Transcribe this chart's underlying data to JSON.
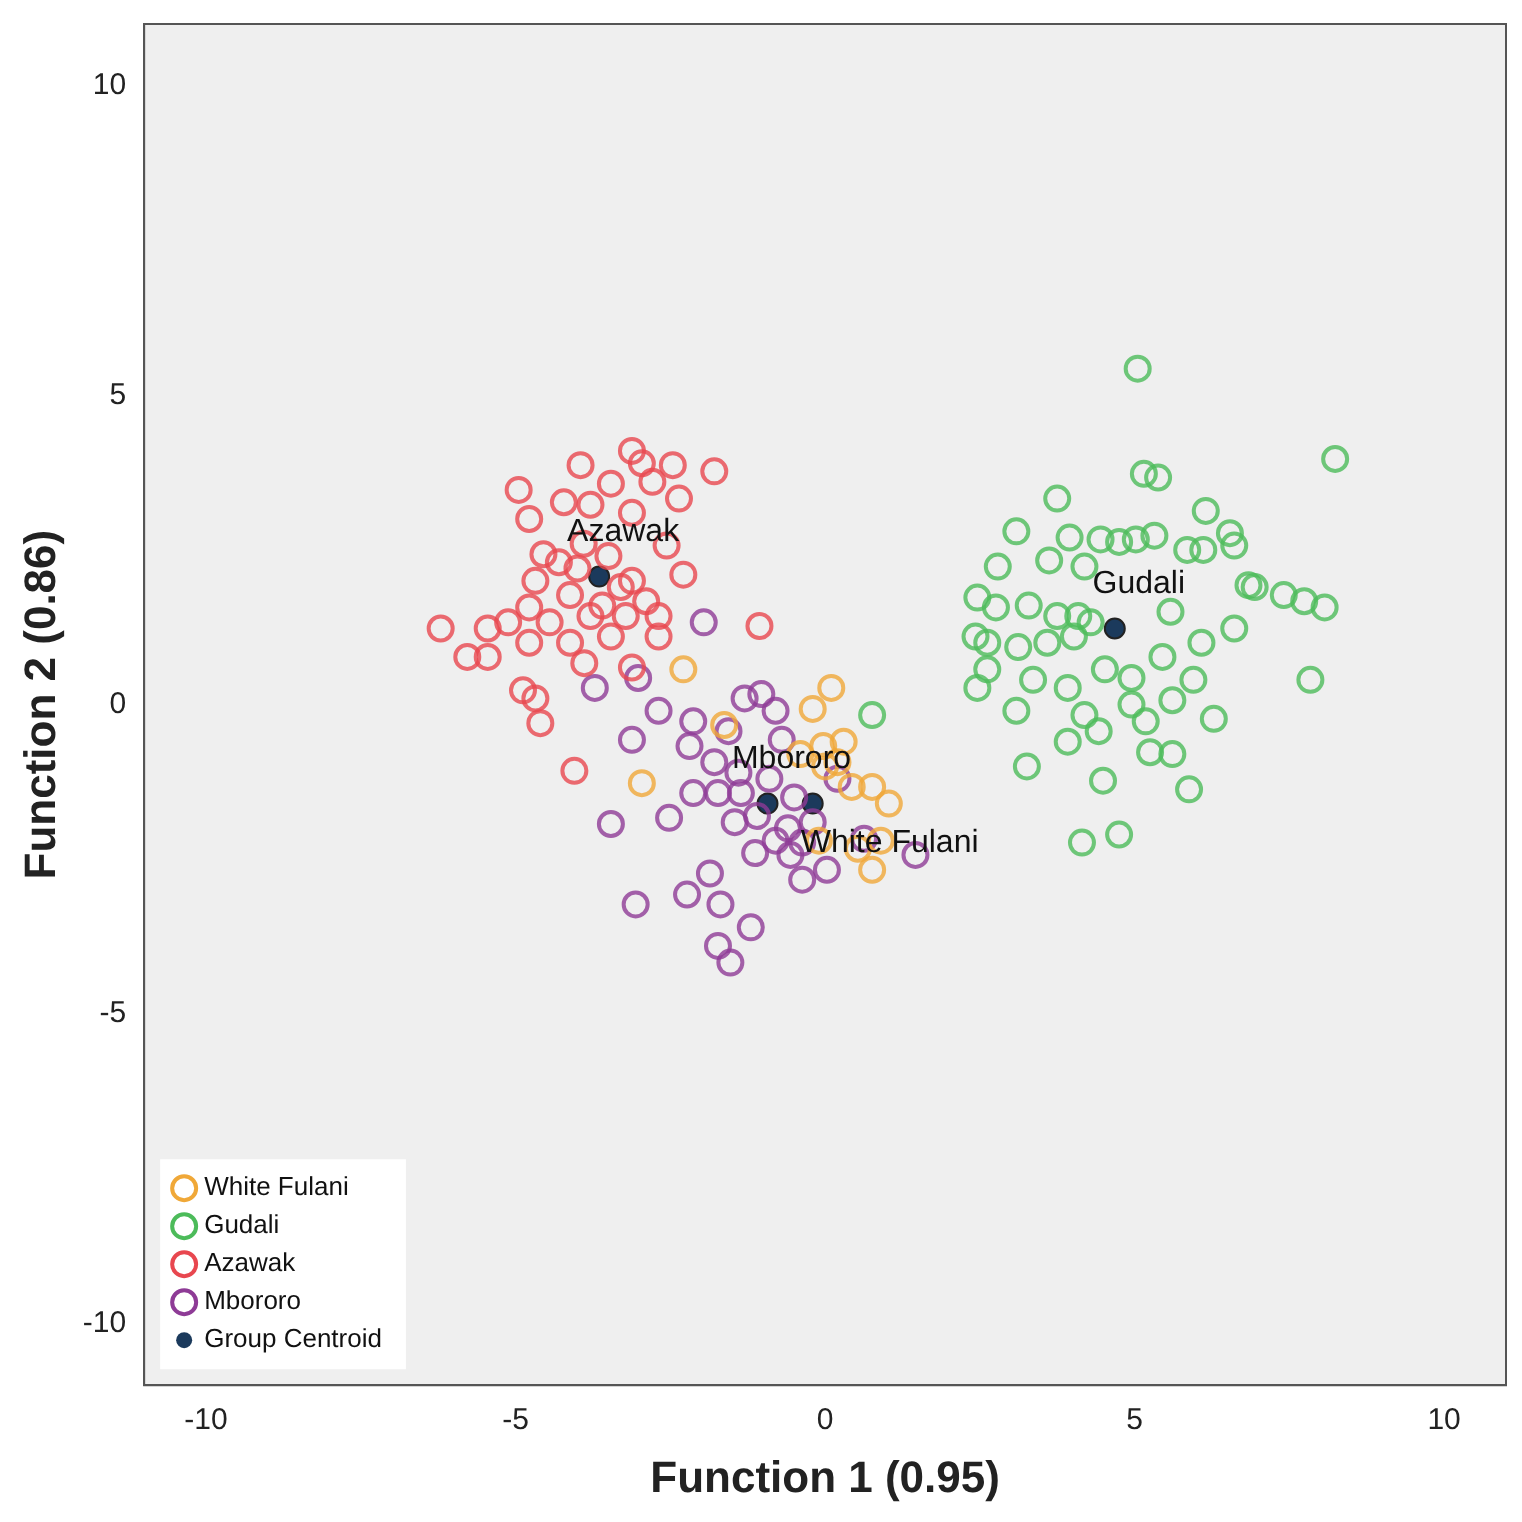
{
  "chart_data": {
    "type": "scatter",
    "xlabel": "Function 1 (0.95)",
    "ylabel": "Function 2 (0.86)",
    "xlim": [
      -11,
      11
    ],
    "ylim": [
      -11,
      11
    ],
    "xticks": [
      -10,
      -5,
      0,
      5,
      10
    ],
    "yticks": [
      -10,
      -5,
      0,
      5,
      10
    ],
    "grid": false,
    "legend": "bottom left",
    "marker": "circle",
    "series": [
      {
        "name": "White Fulani",
        "color": "#f0a838",
        "x": [
          -2.29,
          -2.96,
          0.1,
          -0.2,
          -0.03,
          0.3,
          0.76,
          1.03,
          0.76,
          0.53,
          0.2,
          -1.63,
          0.43,
          0.9,
          0.0,
          -0.4,
          -0.1
        ],
        "values": [
          0.57,
          -1.27,
          0.27,
          -0.07,
          -0.67,
          -0.6,
          -1.33,
          -1.6,
          -2.67,
          -2.33,
          -0.93,
          -0.33,
          -1.33,
          -2.2,
          -1.0,
          -0.8,
          -2.2
        ]
      },
      {
        "name": "Gudali",
        "color": "#4cbb5a",
        "x": [
          5.05,
          8.24,
          5.15,
          5.38,
          3.75,
          6.15,
          3.09,
          3.95,
          4.45,
          4.75,
          5.02,
          5.32,
          5.85,
          6.11,
          6.54,
          6.61,
          2.79,
          3.62,
          4.19,
          6.84,
          6.94,
          7.41,
          7.74,
          8.07,
          2.46,
          2.76,
          3.29,
          3.75,
          4.09,
          4.29,
          5.58,
          2.43,
          2.62,
          3.12,
          3.59,
          4.02,
          6.08,
          6.61,
          2.62,
          2.46,
          3.36,
          3.92,
          4.52,
          4.95,
          5.45,
          5.61,
          5.95,
          7.84,
          3.09,
          4.19,
          4.95,
          5.18,
          3.92,
          4.42,
          5.25,
          5.61,
          6.28,
          3.26,
          4.49,
          5.88,
          4.15,
          4.75,
          0.76
        ],
        "values": [
          5.43,
          3.97,
          3.73,
          3.67,
          3.33,
          3.13,
          2.8,
          2.7,
          2.67,
          2.63,
          2.67,
          2.73,
          2.5,
          2.5,
          2.77,
          2.57,
          2.23,
          2.33,
          2.23,
          1.93,
          1.9,
          1.77,
          1.67,
          1.57,
          1.73,
          1.57,
          1.6,
          1.43,
          1.43,
          1.33,
          1.5,
          1.1,
          1.0,
          0.93,
          1.0,
          1.1,
          1.0,
          1.23,
          0.57,
          0.27,
          0.4,
          0.27,
          0.57,
          0.43,
          0.77,
          0.07,
          0.4,
          0.4,
          -0.1,
          -0.17,
          0.0,
          -0.27,
          -0.6,
          -0.43,
          -0.77,
          -0.8,
          -0.23,
          -1.0,
          -1.23,
          -1.37,
          -2.23,
          -2.1,
          -0.17
        ]
      },
      {
        "name": "Azawak",
        "color": "#e8474f",
        "x": [
          -3.12,
          -3.95,
          -2.96,
          -2.46,
          -1.79,
          -4.95,
          -3.46,
          -2.79,
          -2.36,
          -4.78,
          -4.22,
          -3.79,
          -3.12,
          -4.55,
          -2.56,
          -4.68,
          -2.29,
          -4.12,
          -3.12,
          -2.89,
          -4.78,
          -6.21,
          -5.45,
          -5.12,
          -4.45,
          -3.79,
          -3.22,
          -2.69,
          -1.06,
          -5.78,
          -5.45,
          -4.78,
          -4.12,
          -3.46,
          -2.69,
          -3.89,
          -4.88,
          -4.68,
          -3.12,
          -4.6,
          -4.05,
          -4.0,
          -3.5,
          -3.3,
          -3.9,
          -4.3,
          -3.6
        ],
        "values": [
          4.1,
          3.87,
          3.9,
          3.87,
          3.77,
          3.47,
          3.57,
          3.6,
          3.33,
          3.0,
          3.27,
          3.23,
          3.1,
          2.43,
          2.57,
          2.0,
          2.1,
          1.77,
          2.0,
          1.67,
          1.57,
          1.23,
          1.23,
          1.33,
          1.33,
          1.43,
          1.43,
          1.43,
          1.27,
          0.77,
          0.77,
          1.0,
          1.0,
          1.1,
          1.1,
          0.67,
          0.23,
          0.1,
          0.6,
          -0.3,
          -1.07,
          2.2,
          2.4,
          1.9,
          2.6,
          2.3,
          1.6
        ]
      },
      {
        "name": "Mbororo",
        "color": "#8e3b96",
        "x": [
          -1.96,
          -3.72,
          -3.02,
          -2.69,
          -3.12,
          -2.13,
          -2.19,
          -1.3,
          -1.03,
          -0.8,
          -1.56,
          -0.7,
          -1.79,
          -2.13,
          -2.52,
          -3.46,
          -1.73,
          -1.36,
          -1.46,
          -1.13,
          -0.56,
          -0.37,
          0.03,
          -0.37,
          -1.86,
          -2.23,
          -3.06,
          -1.69,
          -1.2,
          -1.73,
          -1.53,
          1.46,
          0.63,
          -0.9,
          -0.5,
          -1.1,
          -0.6,
          -1.4,
          -0.2,
          -0.8,
          0.2
        ],
        "values": [
          1.33,
          0.27,
          0.43,
          -0.1,
          -0.57,
          -0.27,
          -0.67,
          0.1,
          0.17,
          -0.1,
          -0.43,
          -0.57,
          -0.93,
          -1.43,
          -1.83,
          -1.93,
          -1.43,
          -1.43,
          -1.9,
          -2.4,
          -2.43,
          -2.23,
          -2.67,
          -2.83,
          -2.73,
          -3.07,
          -3.23,
          -3.23,
          -3.6,
          -3.9,
          -4.17,
          -2.43,
          -2.17,
          -1.2,
          -1.5,
          -1.8,
          -2.0,
          -1.1,
          -1.9,
          -2.2,
          -1.2
        ]
      },
      {
        "name": "Group Centroid",
        "color": "#1b3a5c",
        "x": [
          -0.2,
          4.68,
          -3.65,
          -0.93
        ],
        "values": [
          -1.6,
          1.23,
          2.07,
          -1.6
        ]
      }
    ],
    "annotations": [
      {
        "text": "Azawak",
        "x": -3.65,
        "y": 2.07
      },
      {
        "text": "Gudali",
        "x": 4.68,
        "y": 1.23
      },
      {
        "text": "Mbororo",
        "x": -0.93,
        "y": -1.6
      },
      {
        "text": "White Fulani",
        "x": -0.2,
        "y": -1.6
      }
    ]
  }
}
